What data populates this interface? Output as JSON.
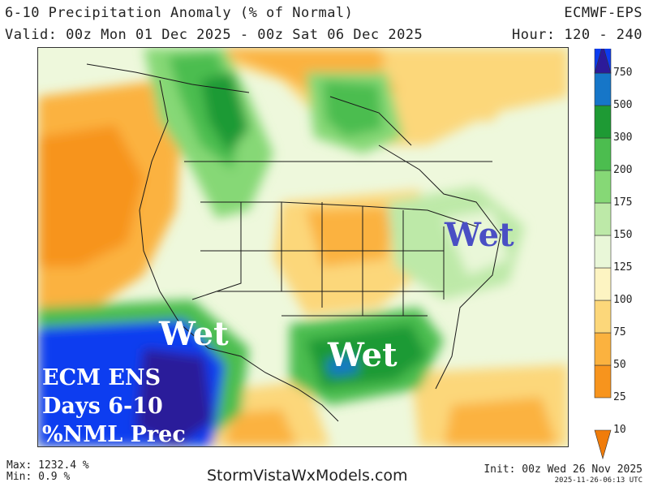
{
  "header": {
    "title": "6-10 Precipitation Anomaly (% of Normal)",
    "valid": "Valid: 00z Mon 01 Dec 2025 - 00z Sat 06 Dec 2025",
    "model": "ECMWF-EPS",
    "hour": "Hour: 120 - 240"
  },
  "map": {
    "labels": {
      "wet_northeast": "Wet",
      "wet_southwest": "Wet",
      "wet_southeast": "Wet"
    },
    "info_lines": [
      "ECM ENS",
      "Days 6-10",
      "%NML Prec"
    ]
  },
  "colorbar": {
    "ticks": [
      "750",
      "500",
      "300",
      "200",
      "175",
      "150",
      "125",
      "100",
      "75",
      "50",
      "25",
      "10"
    ],
    "bands": [
      {
        "min": 0,
        "max": 10,
        "color": "#f07c0a"
      },
      {
        "min": 10,
        "max": 25,
        "color": "#f7941d"
      },
      {
        "min": 25,
        "max": 50,
        "color": "#fbb23f"
      },
      {
        "min": 50,
        "max": 75,
        "color": "#fcd77a"
      },
      {
        "min": 75,
        "max": 100,
        "color": "#fdf4c2"
      },
      {
        "min": 100,
        "max": 125,
        "color": "#e9f7d8"
      },
      {
        "min": 125,
        "max": 150,
        "color": "#bde9a8"
      },
      {
        "min": 150,
        "max": 175,
        "color": "#86d876"
      },
      {
        "min": 175,
        "max": 200,
        "color": "#4cbd4f"
      },
      {
        "min": 200,
        "max": 300,
        "color": "#1e9a34"
      },
      {
        "min": 300,
        "max": 500,
        "color": "#1676c8"
      },
      {
        "min": 500,
        "max": 750,
        "color": "#0c3cf0"
      },
      {
        "min": 750,
        "max": null,
        "color": "#2c1a9a"
      }
    ]
  },
  "footer": {
    "max": "Max: 1232.4 %",
    "min": "Min: 0.9 %",
    "site": "StormVistaWxModels.com",
    "init": "Init: 00z Wed 26 Nov 2025",
    "stamp": "2025-11-26-06:13 UTC"
  }
}
